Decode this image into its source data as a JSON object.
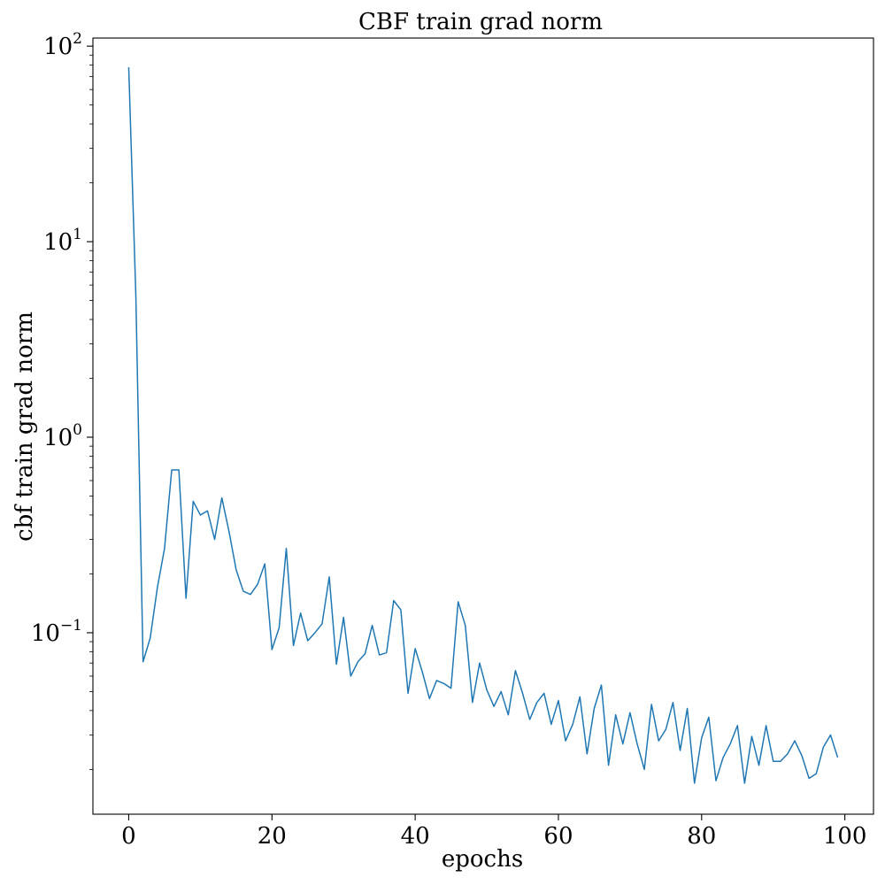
{
  "chart_data": {
    "type": "line",
    "title": "CBF train grad norm",
    "xlabel": "epochs",
    "ylabel": "cbf train grad norm",
    "xlim": [
      -5,
      104
    ],
    "ylim": [
      0.0118,
      110
    ],
    "yscale": "log",
    "grid": false,
    "line_color": "#1f77b4",
    "x_ticks": [
      {
        "value": 0,
        "label": "0"
      },
      {
        "value": 20,
        "label": "20"
      },
      {
        "value": 40,
        "label": "40"
      },
      {
        "value": 60,
        "label": "60"
      },
      {
        "value": 80,
        "label": "80"
      },
      {
        "value": 100,
        "label": "100"
      }
    ],
    "y_ticks": [
      {
        "value": 0.1,
        "base": "10",
        "exp": "−1"
      },
      {
        "value": 1,
        "base": "10",
        "exp": "0"
      },
      {
        "value": 10,
        "base": "10",
        "exp": "1"
      },
      {
        "value": 100,
        "base": "10",
        "exp": "2"
      }
    ],
    "series": [
      {
        "x": [
          0,
          1,
          2,
          3,
          4,
          5,
          6,
          7,
          8,
          9,
          10,
          11,
          12,
          13,
          14,
          15,
          16,
          17,
          18,
          19,
          20,
          21,
          22,
          23,
          24,
          25,
          26,
          27,
          28,
          29,
          30,
          31,
          32,
          33,
          34,
          35,
          36,
          37,
          38,
          39,
          40,
          41,
          42,
          43,
          44,
          45,
          46,
          47,
          48,
          49,
          50,
          51,
          52,
          53,
          54,
          55,
          56,
          57,
          58,
          59,
          60,
          61,
          62,
          63,
          64,
          65,
          66,
          67,
          68,
          69,
          70,
          71,
          72,
          73,
          74,
          75,
          76,
          77,
          78,
          79,
          80,
          81,
          82,
          83,
          84,
          85,
          86,
          87,
          88,
          89,
          90,
          91,
          92,
          93,
          94,
          95,
          96,
          97,
          98,
          99
        ],
        "values": [
          78,
          5.2,
          0.071,
          0.094,
          0.17,
          0.27,
          0.68,
          0.68,
          0.15,
          0.47,
          0.4,
          0.42,
          0.3,
          0.49,
          0.33,
          0.21,
          0.163,
          0.157,
          0.177,
          0.225,
          0.082,
          0.106,
          0.27,
          0.086,
          0.126,
          0.091,
          0.1,
          0.111,
          0.193,
          0.069,
          0.12,
          0.06,
          0.071,
          0.078,
          0.109,
          0.077,
          0.079,
          0.146,
          0.131,
          0.049,
          0.083,
          0.063,
          0.046,
          0.057,
          0.055,
          0.052,
          0.144,
          0.109,
          0.044,
          0.07,
          0.051,
          0.042,
          0.05,
          0.038,
          0.064,
          0.049,
          0.036,
          0.044,
          0.049,
          0.034,
          0.045,
          0.028,
          0.034,
          0.047,
          0.024,
          0.041,
          0.054,
          0.021,
          0.038,
          0.027,
          0.039,
          0.027,
          0.02,
          0.043,
          0.028,
          0.032,
          0.044,
          0.025,
          0.041,
          0.017,
          0.029,
          0.037,
          0.0175,
          0.023,
          0.027,
          0.0335,
          0.017,
          0.0295,
          0.021,
          0.0335,
          0.022,
          0.022,
          0.024,
          0.028,
          0.0235,
          0.018,
          0.019,
          0.026,
          0.03,
          0.023
        ]
      }
    ]
  }
}
